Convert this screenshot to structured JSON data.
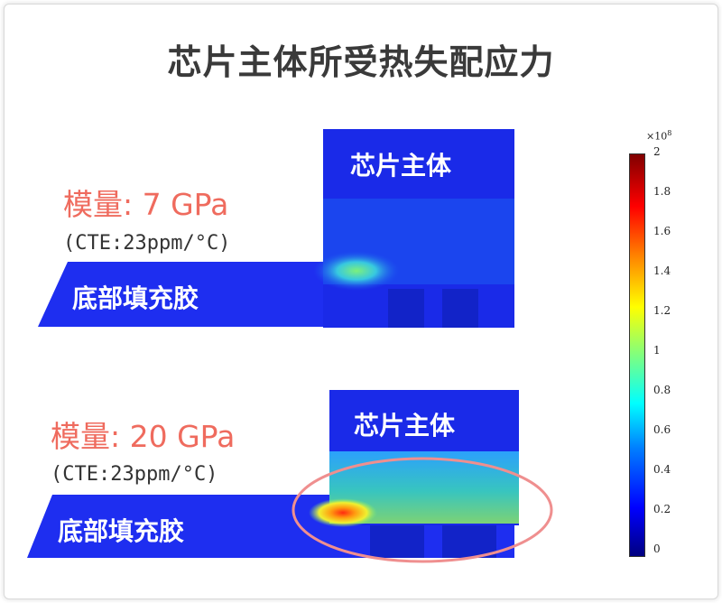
{
  "title": "芯片主体所受热失配应力",
  "top_case": {
    "modulus_label": "模量: 7 GPa",
    "cte_label": "(CTE:23ppm/°C)",
    "chip_label": "芯片主体",
    "underfill_label": "底部填充胶"
  },
  "bottom_case": {
    "modulus_label": "模量: 20 GPa",
    "cte_label": "(CTE:23ppm/°C)",
    "chip_label": "芯片主体",
    "underfill_label": "底部填充胶"
  },
  "colorbar": {
    "exponent_base": "×10",
    "exponent_power": "8",
    "ticks": [
      "2",
      "1.8",
      "1.6",
      "1.4",
      "1.2",
      "1",
      "0.8",
      "0.6",
      "0.4",
      "0.2",
      "0"
    ],
    "colors": [
      "#000080",
      "#0000ff",
      "#00ffff",
      "#ffff00",
      "#ff0000",
      "#800000"
    ]
  },
  "highlight_color": "#ef8f8f"
}
